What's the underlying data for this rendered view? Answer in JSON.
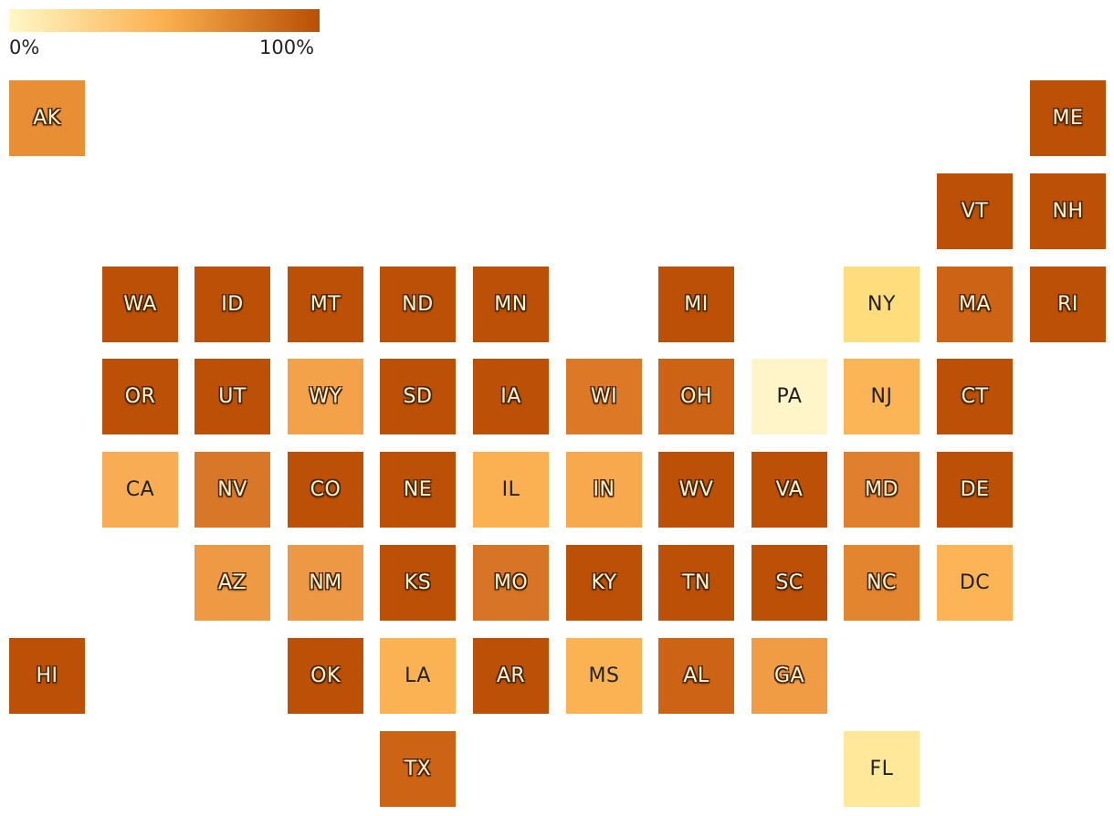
{
  "legend": {
    "min_label": "0%",
    "max_label": "100%",
    "color_low": "#fff8c6",
    "color_mid": "#fbb04e",
    "color_high": "#b84f05"
  },
  "states": [
    {
      "abbr": "AK",
      "col": 0,
      "row": 0,
      "color": "#e88f36"
    },
    {
      "abbr": "ME",
      "col": 11,
      "row": 0,
      "color": "#bb5006"
    },
    {
      "abbr": "VT",
      "col": 10,
      "row": 1,
      "color": "#bb5006"
    },
    {
      "abbr": "NH",
      "col": 11,
      "row": 1,
      "color": "#bb5006"
    },
    {
      "abbr": "WA",
      "col": 1,
      "row": 2,
      "color": "#bb5006"
    },
    {
      "abbr": "ID",
      "col": 2,
      "row": 2,
      "color": "#bb5006"
    },
    {
      "abbr": "MT",
      "col": 3,
      "row": 2,
      "color": "#bb5006"
    },
    {
      "abbr": "ND",
      "col": 4,
      "row": 2,
      "color": "#bb5006"
    },
    {
      "abbr": "MN",
      "col": 5,
      "row": 2,
      "color": "#bb5006"
    },
    {
      "abbr": "MI",
      "col": 7,
      "row": 2,
      "color": "#bb5006"
    },
    {
      "abbr": "NY",
      "col": 9,
      "row": 2,
      "color": "#ffdc7c"
    },
    {
      "abbr": "MA",
      "col": 10,
      "row": 2,
      "color": "#cd6314"
    },
    {
      "abbr": "RI",
      "col": 11,
      "row": 2,
      "color": "#bb5006"
    },
    {
      "abbr": "OR",
      "col": 1,
      "row": 3,
      "color": "#bb5006"
    },
    {
      "abbr": "UT",
      "col": 2,
      "row": 3,
      "color": "#bb5006"
    },
    {
      "abbr": "WY",
      "col": 3,
      "row": 3,
      "color": "#f4a24a"
    },
    {
      "abbr": "SD",
      "col": 4,
      "row": 3,
      "color": "#bb5006"
    },
    {
      "abbr": "IA",
      "col": 5,
      "row": 3,
      "color": "#bb5006"
    },
    {
      "abbr": "WI",
      "col": 6,
      "row": 3,
      "color": "#dc7826"
    },
    {
      "abbr": "OH",
      "col": 7,
      "row": 3,
      "color": "#cd6314"
    },
    {
      "abbr": "PA",
      "col": 8,
      "row": 3,
      "color": "#fff5c8"
    },
    {
      "abbr": "NJ",
      "col": 9,
      "row": 3,
      "color": "#fbb556"
    },
    {
      "abbr": "CT",
      "col": 10,
      "row": 3,
      "color": "#bb5006"
    },
    {
      "abbr": "CA",
      "col": 1,
      "row": 4,
      "color": "#f8ad54"
    },
    {
      "abbr": "NV",
      "col": 2,
      "row": 4,
      "color": "#d97728"
    },
    {
      "abbr": "CO",
      "col": 3,
      "row": 4,
      "color": "#bb5006"
    },
    {
      "abbr": "NE",
      "col": 4,
      "row": 4,
      "color": "#bb5006"
    },
    {
      "abbr": "IL",
      "col": 5,
      "row": 4,
      "color": "#fbb052"
    },
    {
      "abbr": "IN",
      "col": 6,
      "row": 4,
      "color": "#f8a94e"
    },
    {
      "abbr": "WV",
      "col": 7,
      "row": 4,
      "color": "#bb5006"
    },
    {
      "abbr": "VA",
      "col": 8,
      "row": 4,
      "color": "#bb5006"
    },
    {
      "abbr": "MD",
      "col": 9,
      "row": 4,
      "color": "#e07f2e"
    },
    {
      "abbr": "DE",
      "col": 10,
      "row": 4,
      "color": "#bb5006"
    },
    {
      "abbr": "AZ",
      "col": 2,
      "row": 5,
      "color": "#ee9a44"
    },
    {
      "abbr": "NM",
      "col": 3,
      "row": 5,
      "color": "#ec9844"
    },
    {
      "abbr": "KS",
      "col": 4,
      "row": 5,
      "color": "#bb5006"
    },
    {
      "abbr": "MO",
      "col": 5,
      "row": 5,
      "color": "#d77426"
    },
    {
      "abbr": "KY",
      "col": 6,
      "row": 5,
      "color": "#bb5006"
    },
    {
      "abbr": "TN",
      "col": 7,
      "row": 5,
      "color": "#bb5006"
    },
    {
      "abbr": "SC",
      "col": 8,
      "row": 5,
      "color": "#bb5006"
    },
    {
      "abbr": "NC",
      "col": 9,
      "row": 5,
      "color": "#e3842e"
    },
    {
      "abbr": "DC",
      "col": 10,
      "row": 5,
      "color": "#fcb456"
    },
    {
      "abbr": "HI",
      "col": 0,
      "row": 6,
      "color": "#bb5006"
    },
    {
      "abbr": "OK",
      "col": 3,
      "row": 6,
      "color": "#bb5006"
    },
    {
      "abbr": "LA",
      "col": 4,
      "row": 6,
      "color": "#fbb252"
    },
    {
      "abbr": "AR",
      "col": 5,
      "row": 6,
      "color": "#bb5006"
    },
    {
      "abbr": "MS",
      "col": 6,
      "row": 6,
      "color": "#fbb252"
    },
    {
      "abbr": "AL",
      "col": 7,
      "row": 6,
      "color": "#cd6314"
    },
    {
      "abbr": "GA",
      "col": 8,
      "row": 6,
      "color": "#f09c44"
    },
    {
      "abbr": "TX",
      "col": 4,
      "row": 7,
      "color": "#cd6314"
    },
    {
      "abbr": "FL",
      "col": 9,
      "row": 7,
      "color": "#ffe89a"
    }
  ]
}
